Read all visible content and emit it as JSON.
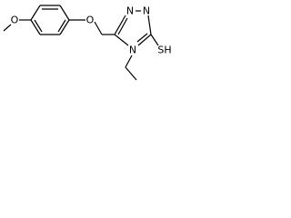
{
  "atoms": [
    {
      "label": "O"
    },
    {
      "label": "O"
    },
    {
      "label": "N"
    },
    {
      "label": "N"
    },
    {
      "label": "N"
    },
    {
      "label": "SH"
    }
  ]
}
